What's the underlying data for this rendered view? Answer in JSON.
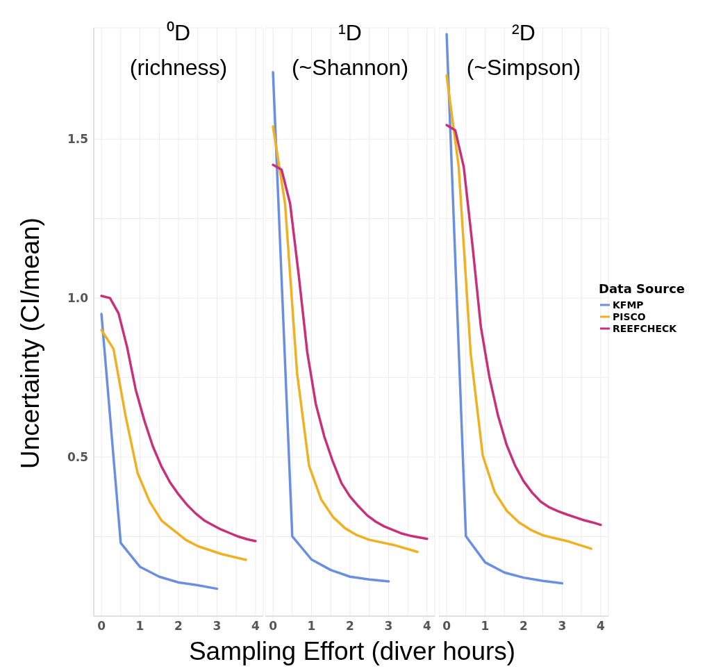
{
  "chart_data": [
    {
      "type": "line",
      "title": "⁰D\n(richness)",
      "ylabel": "Uncertainty (CI/mean)",
      "xlim": [
        -0.2,
        4.2
      ],
      "xticks": [
        0,
        {
          "value": 0.5,
          "label": null
        },
        1,
        {
          "value": 1.5,
          "label": null
        },
        2,
        {
          "value": 2.5,
          "label": null
        },
        3,
        {
          "value": 3.5,
          "label": null
        },
        4
      ],
      "ylim": [
        0,
        1.85
      ],
      "yticks": [
        {
          "value": 0.25,
          "label": null
        },
        0.5,
        {
          "value": 0.75,
          "label": null
        },
        {
          "value": 1,
          "label": "1.0"
        },
        {
          "value": 1.25,
          "label": null
        },
        1.5
      ],
      "grid": true,
      "legend": false,
      "marker": "none",
      "series": [
        {
          "color": "#6a8fe0",
          "x": [
            0,
            0.5,
            1,
            1.5,
            2,
            2.5,
            3
          ],
          "values": [
            0.95,
            0.23,
            0.155,
            0.124,
            0.106,
            0.097,
            0.086
          ]
        },
        {
          "color": "#efb122",
          "x": [
            0,
            0.3125,
            0.625,
            0.9375,
            1.25,
            1.5625,
            1.875,
            2.1875,
            2.5,
            3.125,
            3.75
          ],
          "values": [
            0.9,
            0.84,
            0.63,
            0.45,
            0.36,
            0.3,
            0.27,
            0.24,
            0.22,
            0.195,
            0.177
          ]
        },
        {
          "color": "#c9307a",
          "x": [
            0,
            0.222,
            0.444,
            0.667,
            0.889,
            1.111,
            1.333,
            1.556,
            1.778,
            2,
            2.222,
            2.444,
            2.667,
            2.889,
            3.111,
            3.333,
            3.556,
            3.778,
            4
          ],
          "values": [
            1.007,
            1.0,
            0.952,
            0.845,
            0.712,
            0.616,
            0.534,
            0.471,
            0.421,
            0.383,
            0.35,
            0.323,
            0.301,
            0.286,
            0.272,
            0.261,
            0.25,
            0.242,
            0.236
          ]
        }
      ]
    },
    {
      "type": "line",
      "title": "¹D\n(~Shannon)",
      "xlabel": "Sampling Effort (diver hours)",
      "xlim": [
        -0.2,
        4.2
      ],
      "xticks": [
        0,
        {
          "value": 0.5,
          "label": null
        },
        1,
        {
          "value": 1.5,
          "label": null
        },
        2,
        {
          "value": 2.5,
          "label": null
        },
        3,
        {
          "value": 3.5,
          "label": null
        },
        4
      ],
      "ylim": [
        0,
        1.85
      ],
      "yticks": [
        {
          "value": 0.25,
          "label": null
        },
        0.5,
        {
          "value": 0.75,
          "label": null
        },
        1.0,
        {
          "value": 1.25,
          "label": null
        },
        1.5
      ],
      "tick_labels": "x",
      "grid": true,
      "legend": false,
      "marker": "none",
      "series": [
        {
          "color": "#6a8fe0",
          "x": [
            0,
            0.5,
            1,
            1.5,
            2,
            2.5,
            3
          ],
          "values": [
            1.71,
            0.251,
            0.178,
            0.145,
            0.124,
            0.115,
            0.109
          ]
        },
        {
          "color": "#efb122",
          "x": [
            0,
            0.3125,
            0.625,
            0.9375,
            1.25,
            1.5625,
            1.875,
            2.1875,
            2.5,
            3.125,
            3.75
          ],
          "values": [
            1.54,
            1.297,
            0.764,
            0.472,
            0.367,
            0.311,
            0.276,
            0.254,
            0.24,
            0.224,
            0.202
          ]
        },
        {
          "color": "#c9307a",
          "x": [
            0,
            0.222,
            0.444,
            0.667,
            0.889,
            1.111,
            1.333,
            1.556,
            1.778,
            2,
            2.222,
            2.444,
            2.667,
            2.889,
            3.111,
            3.333,
            3.556,
            3.778,
            4
          ],
          "values": [
            1.419,
            1.404,
            1.297,
            1.073,
            0.83,
            0.667,
            0.564,
            0.485,
            0.418,
            0.376,
            0.345,
            0.317,
            0.297,
            0.282,
            0.271,
            0.26,
            0.253,
            0.248,
            0.243
          ]
        }
      ]
    },
    {
      "type": "line",
      "title": "²D\n(~Simpson)",
      "legend_title": "Data Source",
      "xlim": [
        -0.2,
        4.2
      ],
      "xticks": [
        0,
        {
          "value": 0.5,
          "label": null
        },
        1,
        {
          "value": 1.5,
          "label": null
        },
        2,
        {
          "value": 2.5,
          "label": null
        },
        3,
        {
          "value": 3.5,
          "label": null
        },
        4
      ],
      "ylim": [
        0,
        1.85
      ],
      "yticks": [
        {
          "value": 0.25,
          "label": null
        },
        0.5,
        {
          "value": 0.75,
          "label": null
        },
        1.0,
        {
          "value": 1.25,
          "label": null
        },
        1.5
      ],
      "tick_labels": "x",
      "grid": true,
      "legend": "right",
      "marker": "none",
      "series": [
        {
          "name": "KFMP",
          "color": "#6a8fe0",
          "x": [
            0,
            0.5,
            1,
            1.5,
            2,
            2.5,
            3
          ],
          "values": [
            1.83,
            0.251,
            0.169,
            0.137,
            0.121,
            0.111,
            0.103
          ]
        },
        {
          "name": "PISCO",
          "color": "#efb122",
          "x": [
            0,
            0.3125,
            0.625,
            0.9375,
            1.25,
            1.5625,
            1.875,
            2.1875,
            2.5,
            3.125,
            3.75
          ],
          "values": [
            1.7,
            1.413,
            0.825,
            0.505,
            0.389,
            0.331,
            0.295,
            0.271,
            0.254,
            0.236,
            0.212
          ]
        },
        {
          "name": "REEFCHECK",
          "color": "#c9307a",
          "x": [
            0,
            0.222,
            0.444,
            0.667,
            0.889,
            1.111,
            1.333,
            1.556,
            1.778,
            2,
            2.222,
            2.444,
            2.667,
            2.889,
            3.111,
            3.333,
            3.556,
            3.778,
            4
          ],
          "values": [
            1.544,
            1.528,
            1.413,
            1.17,
            0.909,
            0.751,
            0.631,
            0.539,
            0.473,
            0.424,
            0.388,
            0.36,
            0.342,
            0.33,
            0.32,
            0.311,
            0.302,
            0.295,
            0.287
          ]
        }
      ]
    }
  ]
}
